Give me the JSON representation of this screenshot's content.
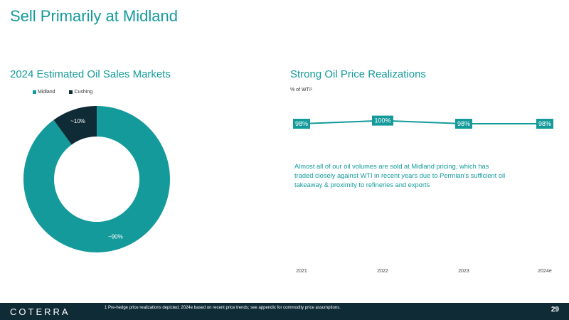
{
  "slide": {
    "title": "Sell Primarily at Midland",
    "page_number": "29"
  },
  "left_panel": {
    "title": "2024 Estimated Oil Sales Markets"
  },
  "right_panel": {
    "title": "Strong Oil Price Realizations",
    "unit_label": "% of WTI¹",
    "callout": "Almost all of our oil volumes are sold at Midland pricing, which has traded closely against WTI in recent years due to Permian's sufficient oil takeaway & proximity to refineries and exports"
  },
  "footer": {
    "logo": "COTERRA",
    "footnote": "1 Pre-hedge price realizations depicted. 2024e based on recent price trends; see appendix for commodity price assumptions."
  },
  "colors": {
    "accent": "#149a9b",
    "dark": "#0f2b36"
  },
  "chart_data": [
    {
      "type": "pie",
      "title": "2024 Estimated Oil Sales Markets",
      "legend_position": "top-left",
      "series": [
        {
          "name": "Midland",
          "value": 90,
          "label": "~90%",
          "color": "#149a9b"
        },
        {
          "name": "Cushing",
          "value": 10,
          "label": "~10%",
          "color": "#0f2b36"
        }
      ]
    },
    {
      "type": "line",
      "title": "Strong Oil Price Realizations",
      "ylabel": "% of WTI¹",
      "categories": [
        "2021",
        "2022",
        "2023",
        "2024e"
      ],
      "values": [
        98,
        100,
        98,
        98
      ],
      "labels": [
        "98%",
        "100%",
        "98%",
        "98%"
      ],
      "color": "#149a9b"
    }
  ]
}
